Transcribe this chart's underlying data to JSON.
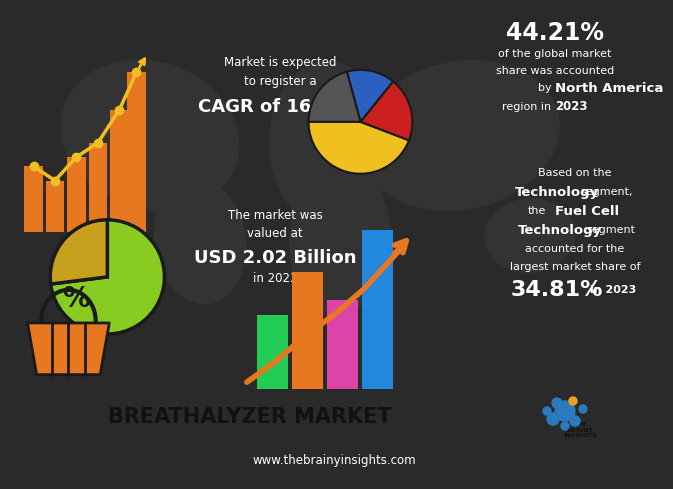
{
  "title": "BREATHALYZER MARKET",
  "website": "www.thebrainyinsights.com",
  "bg_dark": "#2a2a2a",
  "bg_white": "#ffffff",
  "bg_footer": "#3a3a3a",
  "cagr_line1": "Market is expected",
  "cagr_line2": "to register a",
  "cagr_bold": "CAGR of 16.94%",
  "pie_pct": "44.21%",
  "pie_line1": "of the global market",
  "pie_line2": "share was accounted",
  "pie_line3": "by ",
  "pie_bold": "North America",
  "pie_line4": "region in ",
  "pie_year": "2023",
  "pie_slices": [
    44.21,
    20.0,
    15.0,
    20.79
  ],
  "pie_colors": [
    "#f0c020",
    "#cc2020",
    "#2a60c0",
    "#555555"
  ],
  "market_line1": "The market was",
  "market_line2": "valued at",
  "market_bold": "USD 2.02 Billion",
  "market_line3": "in 2023",
  "tech_line1": "Based on the",
  "tech_bold1": "Technology",
  "tech_line2": " segment,",
  "tech_line3": "the ",
  "tech_bold2": "Fuel Cell",
  "tech_bold3": "Technology",
  "tech_line4": " segment",
  "tech_line5": "accounted for the",
  "tech_line6": "largest market share of",
  "tech_pct": "34.81%",
  "tech_year": " in 2023",
  "orange": "#e87820",
  "yellow": "#f0c020",
  "green": "#88cc22",
  "green_dark": "#3a8a00",
  "gold": "#c8a020"
}
